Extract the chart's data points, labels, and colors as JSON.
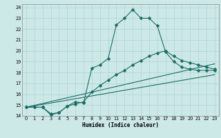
{
  "xlabel": "Humidex (Indice chaleur)",
  "bg_color": "#cce9e8",
  "grid_color": "#aed4d3",
  "line_color": "#1a6b60",
  "xlim": [
    -0.5,
    23.5
  ],
  "ylim": [
    14,
    24.3
  ],
  "xticks": [
    0,
    1,
    2,
    3,
    4,
    5,
    6,
    7,
    8,
    9,
    10,
    11,
    12,
    13,
    14,
    15,
    16,
    17,
    18,
    19,
    20,
    21,
    22,
    23
  ],
  "yticks": [
    14,
    15,
    16,
    17,
    18,
    19,
    20,
    21,
    22,
    23,
    24
  ],
  "series": [
    {
      "x": [
        0,
        1,
        2,
        3,
        4,
        5,
        6,
        7,
        8,
        9,
        10,
        11,
        12,
        13,
        14,
        15,
        16,
        17,
        18,
        19,
        20,
        21,
        22,
        23
      ],
      "y": [
        14.8,
        14.8,
        14.8,
        14.1,
        14.3,
        14.9,
        15.3,
        15.2,
        18.4,
        18.7,
        19.3,
        22.4,
        23.0,
        23.8,
        23.0,
        23.0,
        22.3,
        19.9,
        19.0,
        18.5,
        18.3,
        18.2,
        18.2,
        18.2
      ],
      "marker": "D",
      "markersize": 2.5
    },
    {
      "x": [
        0,
        1,
        2,
        3,
        4,
        5,
        6,
        7,
        8,
        9,
        10,
        11,
        12,
        13,
        14,
        15,
        16,
        17,
        18,
        19,
        20,
        21,
        22,
        23
      ],
      "y": [
        14.8,
        14.8,
        14.8,
        14.2,
        14.3,
        14.9,
        15.1,
        15.3,
        16.2,
        16.8,
        17.3,
        17.8,
        18.2,
        18.7,
        19.1,
        19.5,
        19.8,
        20.0,
        19.5,
        19.1,
        18.9,
        18.7,
        18.5,
        18.3
      ],
      "marker": "D",
      "markersize": 2.5
    },
    {
      "x": [
        0,
        23
      ],
      "y": [
        14.8,
        18.8
      ],
      "marker": null,
      "markersize": 0
    },
    {
      "x": [
        0,
        23
      ],
      "y": [
        14.8,
        17.8
      ],
      "marker": null,
      "markersize": 0
    }
  ]
}
